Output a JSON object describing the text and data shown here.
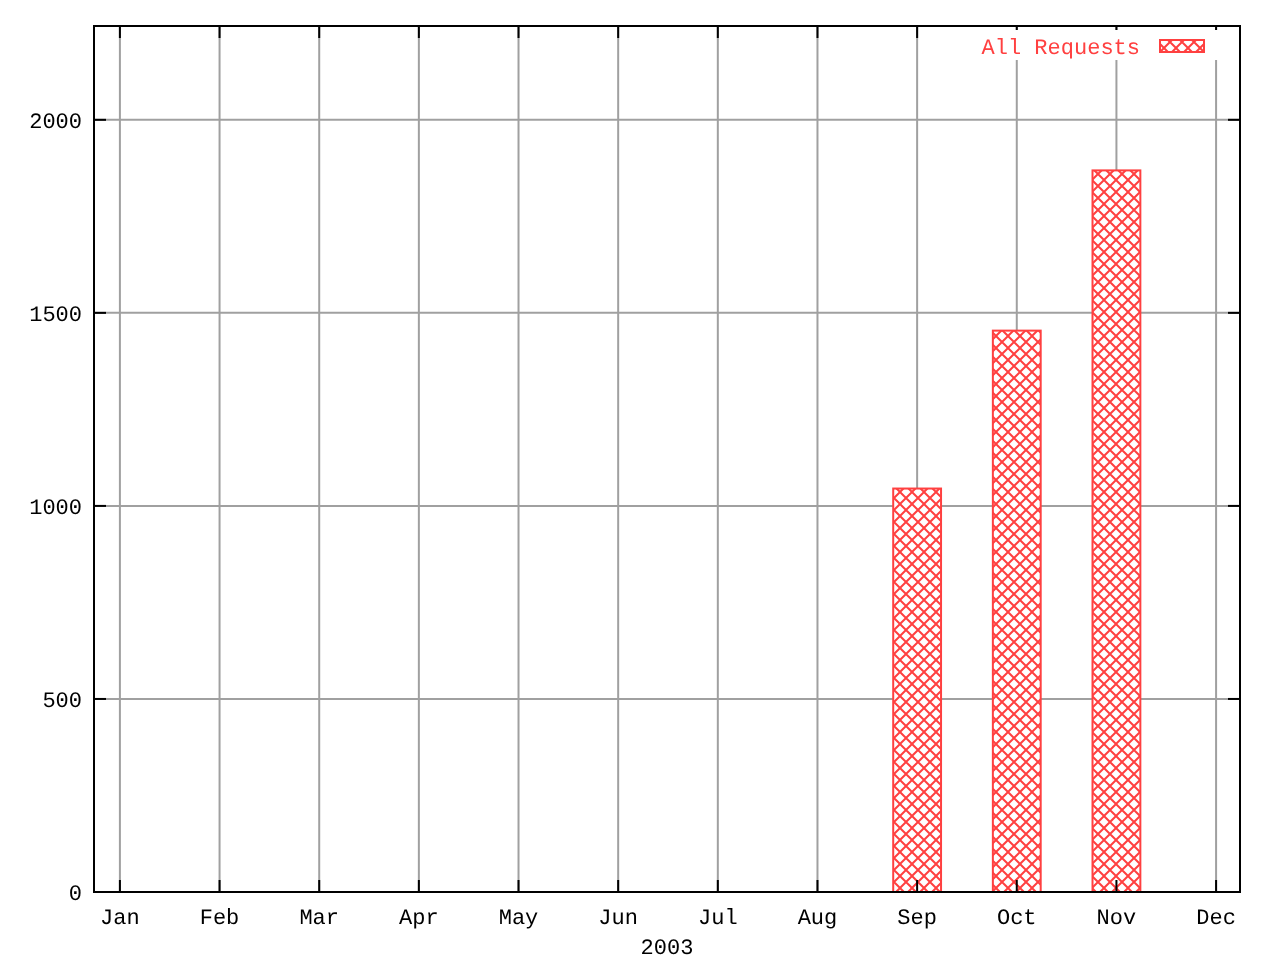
{
  "chart_data": {
    "type": "bar",
    "xlabel": "2003",
    "categories": [
      "Jan",
      "Feb",
      "Mar",
      "Apr",
      "May",
      "Jun",
      "Jul",
      "Aug",
      "Sep",
      "Oct",
      "Nov",
      "Dec"
    ],
    "series": [
      {
        "name": "All Requests",
        "color": "#ff4040",
        "values": [
          0,
          0,
          0,
          0,
          0,
          0,
          0,
          0,
          1045,
          1454,
          1869,
          0
        ]
      }
    ],
    "ylim": [
      0,
      2243
    ],
    "yticks": [
      0,
      500,
      1000,
      1500,
      2000
    ],
    "grid": true,
    "legend": "top right"
  }
}
